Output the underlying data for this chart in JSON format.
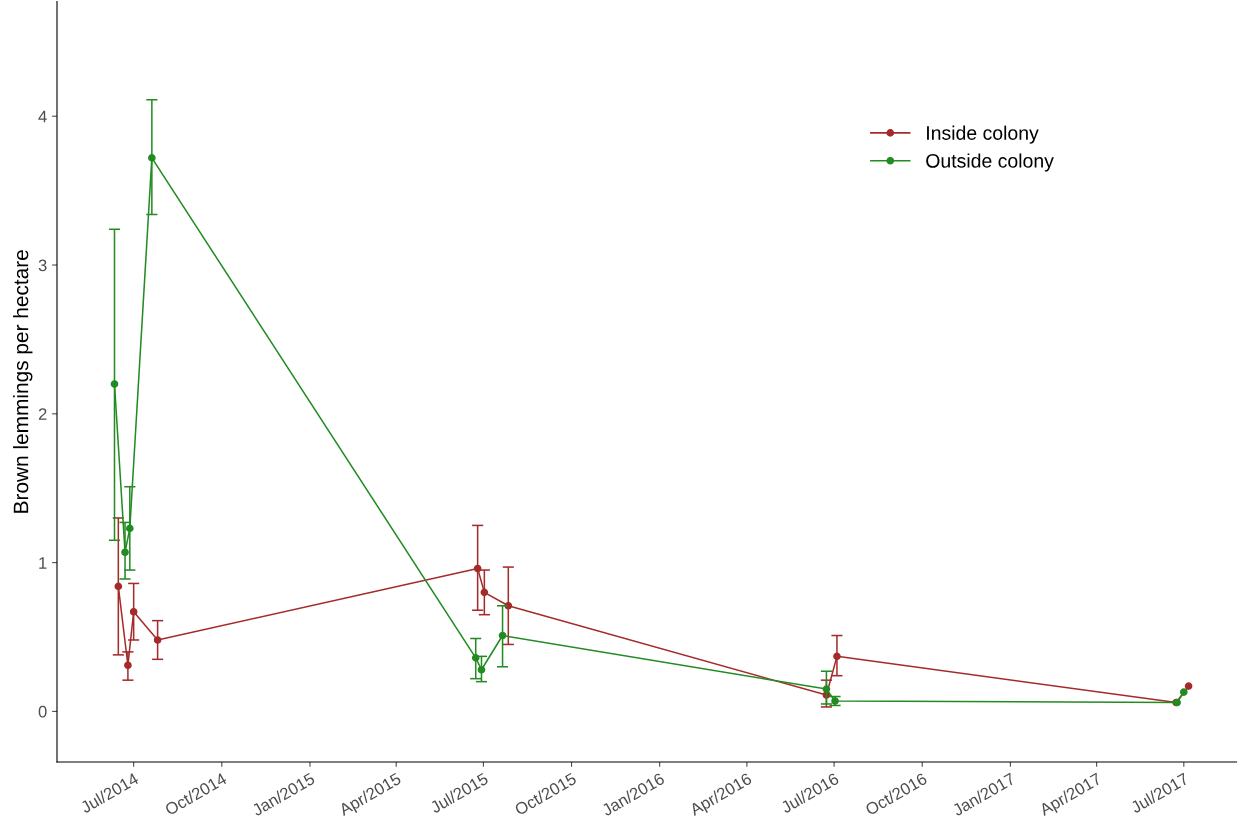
{
  "chart_data": {
    "type": "line",
    "ylabel": "Brown lemmings per hectare",
    "xlim": [
      "2014-04-12",
      "2017-08-25"
    ],
    "ylim": [
      -0.34,
      4.77
    ],
    "yticks": [
      0,
      1,
      2,
      3,
      4
    ],
    "xticks": [
      {
        "value": "2014-07-01",
        "label": "Jul/2014"
      },
      {
        "value": "2014-10-01",
        "label": "Oct/2014"
      },
      {
        "value": "2015-01-01",
        "label": "Jan/2015"
      },
      {
        "value": "2015-04-01",
        "label": "Apr/2015"
      },
      {
        "value": "2015-07-01",
        "label": "Jul/2015"
      },
      {
        "value": "2015-10-01",
        "label": "Oct/2015"
      },
      {
        "value": "2016-01-01",
        "label": "Jan/2016"
      },
      {
        "value": "2016-04-01",
        "label": "Apr/2016"
      },
      {
        "value": "2016-07-01",
        "label": "Jul/2016"
      },
      {
        "value": "2016-10-01",
        "label": "Oct/2016"
      },
      {
        "value": "2017-01-01",
        "label": "Jan/2017"
      },
      {
        "value": "2017-04-01",
        "label": "Apr/2017"
      },
      {
        "value": "2017-07-01",
        "label": "Jul/2017"
      }
    ],
    "grid": false,
    "legend": "top right",
    "marker": "circle",
    "line_style": "solid",
    "series": [
      {
        "name": "Inside colony",
        "color": "#a52a2a",
        "x": [
          "2014-06-15",
          "2014-06-25",
          "2014-07-01",
          "2014-07-26",
          "2015-06-25",
          "2015-07-02",
          "2015-07-27",
          "2016-06-23",
          "2016-07-04",
          "2017-06-23",
          "2017-07-06"
        ],
        "values": [
          0.84,
          0.31,
          0.67,
          0.48,
          0.96,
          0.8,
          0.71,
          0.11,
          0.37,
          0.06,
          0.17
        ],
        "errors": [
          [
            0.38,
            1.3
          ],
          [
            0.21,
            0.4
          ],
          [
            0.48,
            0.86
          ],
          [
            0.35,
            0.61
          ],
          [
            0.68,
            1.25
          ],
          [
            0.65,
            0.95
          ],
          [
            0.45,
            0.97
          ],
          [
            0.03,
            0.21
          ],
          [
            0.24,
            0.51
          ],
          null,
          null
        ]
      },
      {
        "name": "Outside colony",
        "color": "#228b22",
        "x": [
          "2014-06-11",
          "2014-06-22",
          "2014-06-27",
          "2014-07-20",
          "2015-06-23",
          "2015-06-29",
          "2015-07-21",
          "2016-06-23",
          "2016-07-02",
          "2017-06-24",
          "2017-07-01"
        ],
        "values": [
          2.2,
          1.07,
          1.23,
          3.72,
          0.36,
          0.28,
          0.51,
          0.15,
          0.07,
          0.06,
          0.13
        ],
        "errors": [
          [
            1.15,
            3.24
          ],
          [
            0.89,
            1.27
          ],
          [
            0.95,
            1.51
          ],
          [
            3.34,
            4.11
          ],
          [
            0.22,
            0.49
          ],
          [
            0.2,
            0.37
          ],
          [
            0.3,
            0.71
          ],
          [
            0.05,
            0.27
          ],
          [
            0.04,
            0.1
          ],
          null,
          null
        ]
      }
    ]
  }
}
